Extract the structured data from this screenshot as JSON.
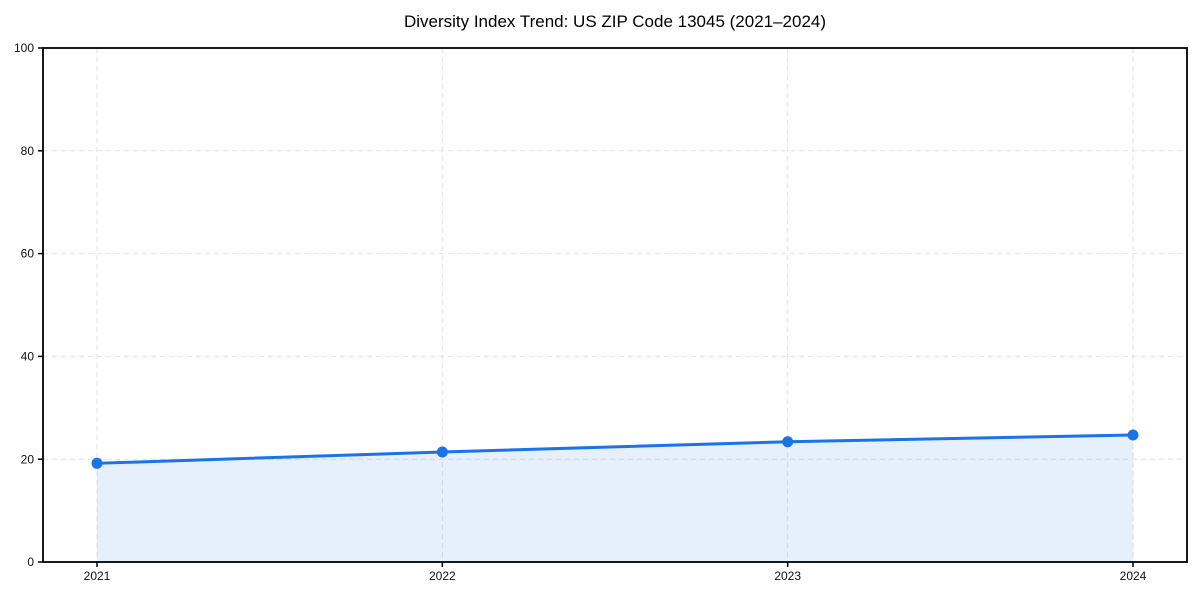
{
  "chart_data": {
    "type": "line",
    "title": "Diversity Index Trend: US ZIP Code 13045 (2021–2024)",
    "categories": [
      "2021",
      "2022",
      "2023",
      "2024"
    ],
    "values": [
      19.2,
      21.4,
      23.4,
      24.7
    ],
    "xlabel": "",
    "ylabel": "",
    "ylim": [
      0,
      100
    ],
    "yticks": [
      0,
      20,
      40,
      60,
      80,
      100
    ],
    "grid": true,
    "grid_style": "dashed",
    "legend": false,
    "marker": "circle",
    "area": true,
    "colors": {
      "line": "#1a73e8",
      "marker": "#1a73e8",
      "fill": "rgba(26,115,232,0.11)",
      "grid": "#e2e2e2",
      "axis": "#000000",
      "tick_label": "#111111",
      "title": "#000000",
      "background": "#ffffff"
    }
  }
}
